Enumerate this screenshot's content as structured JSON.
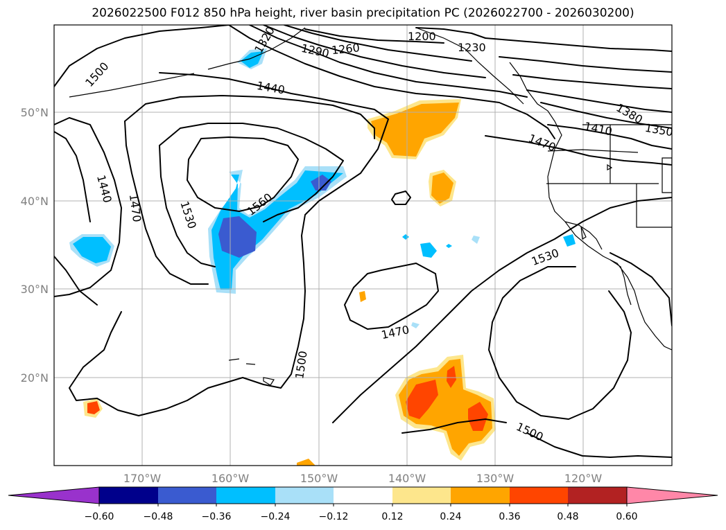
{
  "title": "2026022500 F012 850 hPa height, river basin precipitation PC (2026022700 - 2026030200)",
  "map": {
    "lat_labels": [
      "50°N",
      "40°N",
      "30°N",
      "20°N"
    ],
    "lon_labels": [
      "170°W",
      "160°W",
      "150°W",
      "140°W",
      "130°W",
      "120°W"
    ],
    "contour_labels": [
      "1500",
      "1440",
      "1470",
      "1530",
      "1560",
      "1440",
      "1290",
      "1260",
      "1200",
      "1230",
      "1320",
      "1380",
      "1410",
      "1350",
      "1470",
      "1530",
      "1470",
      "1500",
      "1500"
    ],
    "colors": {
      "pos_012": "#fde68c",
      "pos_024": "#ffa500",
      "pos_036": "#ff4500",
      "neg_024": "#a9e0f8",
      "neg_036": "#00bfff",
      "neg_048": "#3a5bd0"
    }
  },
  "colorbar": {
    "ticks": [
      "−0.60",
      "−0.48",
      "−0.36",
      "−0.24",
      "−0.12",
      "0.12",
      "0.24",
      "0.36",
      "0.48",
      "0.60"
    ],
    "colors": [
      "#9932cc",
      "#00008b",
      "#3a5bd0",
      "#00bfff",
      "#a9e0f8",
      "#ffffff",
      "#fde68c",
      "#ffa500",
      "#ff4500",
      "#b22222",
      "#ff87a8"
    ]
  }
}
